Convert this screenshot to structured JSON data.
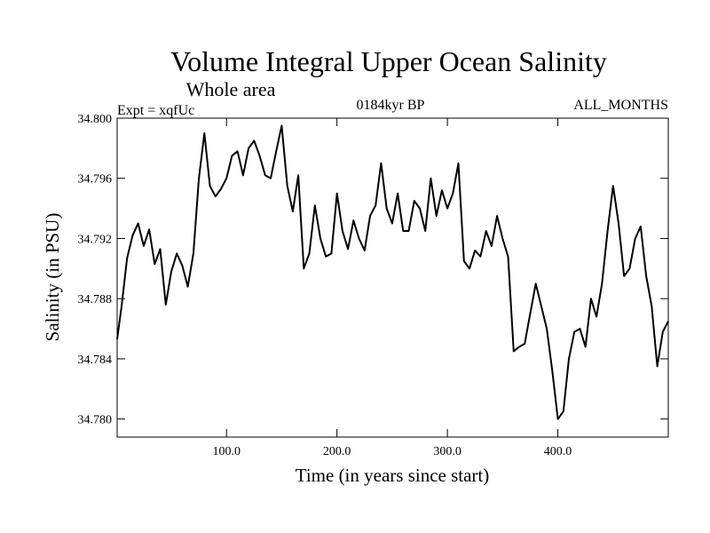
{
  "chart_data": {
    "type": "line",
    "title": "Volume Integral Upper Ocean Salinity",
    "subtitle": "Whole area",
    "annotations": {
      "experiment": "Expt = xqfUc",
      "period": "0184kyr BP",
      "months": "ALL_MONTHS"
    },
    "xlabel": "Time (in years since start)",
    "ylabel": "Salinity (in PSU)",
    "xlim": [
      1,
      500
    ],
    "ylim": [
      34.7788,
      34.8
    ],
    "x_ticks": [
      100,
      200,
      300,
      400
    ],
    "x_tick_labels": [
      "100.0",
      "200.0",
      "300.0",
      "400.0"
    ],
    "y_ticks": [
      34.78,
      34.784,
      34.788,
      34.792,
      34.796,
      34.8
    ],
    "y_tick_labels": [
      "34.780",
      "34.784",
      "34.788",
      "34.792",
      "34.796",
      "34.800"
    ],
    "grid": false,
    "series": [
      {
        "name": "Salinity",
        "x": [
          1,
          5,
          10,
          15,
          20,
          25,
          30,
          35,
          40,
          45,
          50,
          55,
          60,
          65,
          70,
          75,
          80,
          85,
          90,
          95,
          100,
          105,
          110,
          115,
          120,
          125,
          130,
          135,
          140,
          145,
          150,
          155,
          160,
          165,
          170,
          175,
          180,
          185,
          190,
          195,
          200,
          205,
          210,
          215,
          220,
          225,
          230,
          235,
          240,
          245,
          250,
          255,
          260,
          265,
          270,
          275,
          280,
          285,
          290,
          295,
          300,
          305,
          310,
          315,
          320,
          325,
          330,
          335,
          340,
          345,
          350,
          355,
          360,
          365,
          370,
          375,
          380,
          385,
          390,
          395,
          400,
          405,
          410,
          415,
          420,
          425,
          430,
          435,
          440,
          445,
          450,
          455,
          460,
          465,
          470,
          475,
          480,
          485,
          490,
          495,
          500
        ],
        "values": [
          34.7853,
          34.7875,
          34.7907,
          34.7922,
          34.793,
          34.7915,
          34.7926,
          34.7903,
          34.7913,
          34.7876,
          34.7898,
          34.791,
          34.7902,
          34.7888,
          34.791,
          34.796,
          34.799,
          34.7955,
          34.7948,
          34.7953,
          34.796,
          34.7975,
          34.7978,
          34.7962,
          34.798,
          34.7985,
          34.7975,
          34.7962,
          34.796,
          34.7978,
          34.7995,
          34.7955,
          34.7938,
          34.7962,
          34.79,
          34.791,
          34.7942,
          34.792,
          34.7908,
          34.791,
          34.795,
          34.7925,
          34.7913,
          34.7932,
          34.792,
          34.7912,
          34.7935,
          34.7942,
          34.797,
          34.794,
          34.793,
          34.795,
          34.7925,
          34.7925,
          34.7945,
          34.794,
          34.7925,
          34.796,
          34.7935,
          34.7952,
          34.794,
          34.795,
          34.797,
          34.7905,
          34.79,
          34.7912,
          34.7908,
          34.7925,
          34.7915,
          34.7935,
          34.792,
          34.7908,
          34.7845,
          34.7848,
          34.785,
          34.787,
          34.789,
          34.7875,
          34.786,
          34.7832,
          34.78,
          34.7805,
          34.784,
          34.7858,
          34.786,
          34.7848,
          34.788,
          34.7868,
          34.789,
          34.7925,
          34.7955,
          34.793,
          34.7895,
          34.79,
          34.792,
          34.7928,
          34.7895,
          34.7875,
          34.7835,
          34.7858,
          34.7865
        ]
      }
    ]
  }
}
